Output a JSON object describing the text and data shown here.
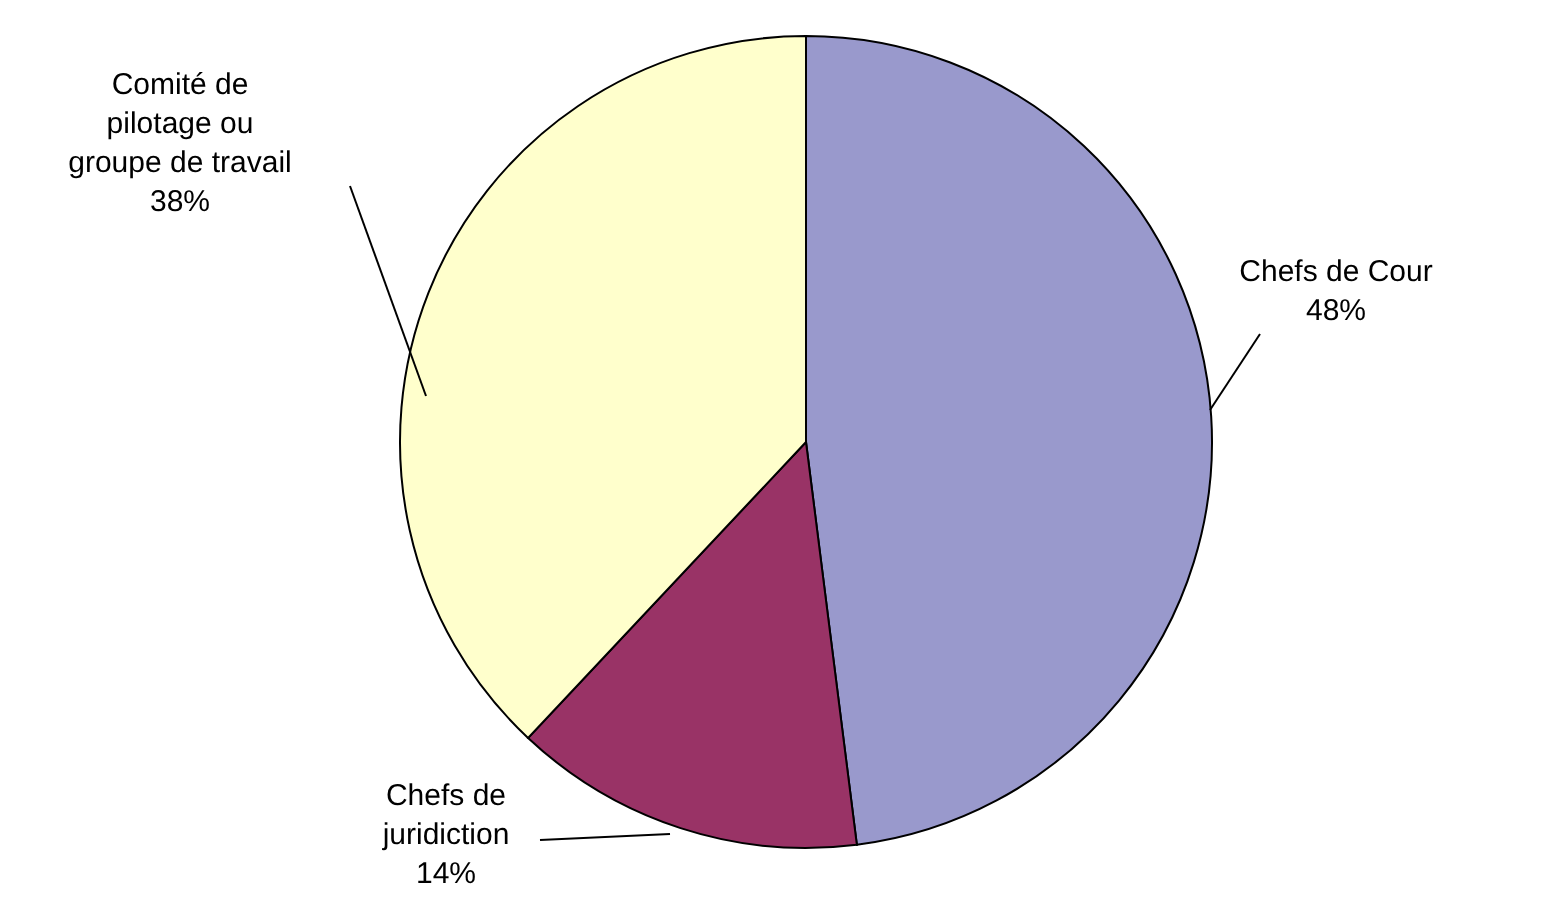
{
  "chart_data": {
    "type": "pie",
    "categories": [
      "Chefs de Cour",
      "Chefs de juridiction",
      "Comité de pilotage ou groupe de travail"
    ],
    "values": [
      48,
      14,
      38
    ],
    "colors": [
      "#9999cc",
      "#993366",
      "#ffffcc"
    ],
    "value_labels": [
      "48%",
      "14%",
      "38%"
    ],
    "legend": false
  }
}
